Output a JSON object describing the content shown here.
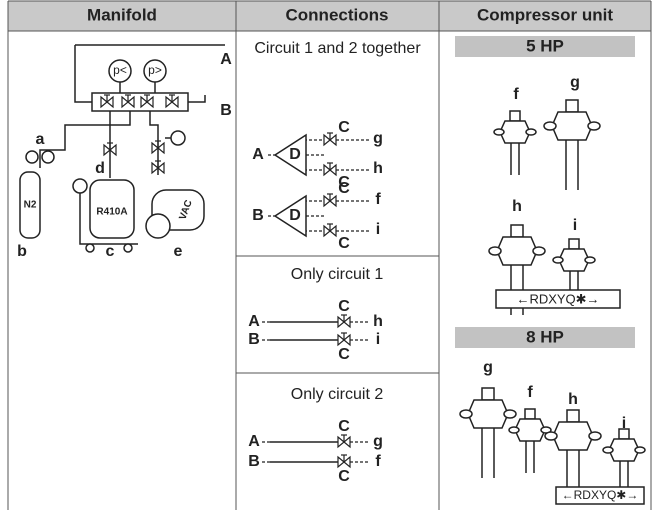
{
  "headers": [
    "Manifold",
    "Connections",
    "Compressor unit"
  ],
  "manifold": {
    "gauges": [
      "p<",
      "p>"
    ],
    "ports": [
      "A",
      "B"
    ],
    "items": [
      "a",
      "b",
      "c",
      "d",
      "e"
    ],
    "cylinders": [
      "N2",
      "R410A"
    ],
    "pump": "VAC"
  },
  "connections": [
    {
      "title": "Circuit 1 and 2 together",
      "diagrams": [
        {
          "source": "A",
          "divider": "D",
          "valves": [
            "C",
            "C"
          ],
          "targets": [
            "g",
            "h"
          ]
        },
        {
          "source": "B",
          "divider": "D",
          "valves": [
            "C",
            "C"
          ],
          "targets": [
            "f",
            "i"
          ]
        }
      ]
    },
    {
      "title": "Only circuit 1",
      "lines": [
        {
          "source": "A",
          "valve": "C",
          "target": "h"
        },
        {
          "source": "B",
          "valve": "C",
          "target": "i"
        }
      ]
    },
    {
      "title": "Only circuit 2",
      "lines": [
        {
          "source": "A",
          "valve": "C",
          "target": "g"
        },
        {
          "source": "B",
          "valve": "C",
          "target": "f"
        }
      ]
    }
  ],
  "compressor": [
    {
      "model": "5 HP",
      "ports": [
        "f",
        "g",
        "h",
        "i"
      ],
      "label": "←RDXYQ✱→"
    },
    {
      "model": "8 HP",
      "ports": [
        "g",
        "f",
        "h",
        "i"
      ],
      "label": "←RDXYQ✱→"
    }
  ]
}
